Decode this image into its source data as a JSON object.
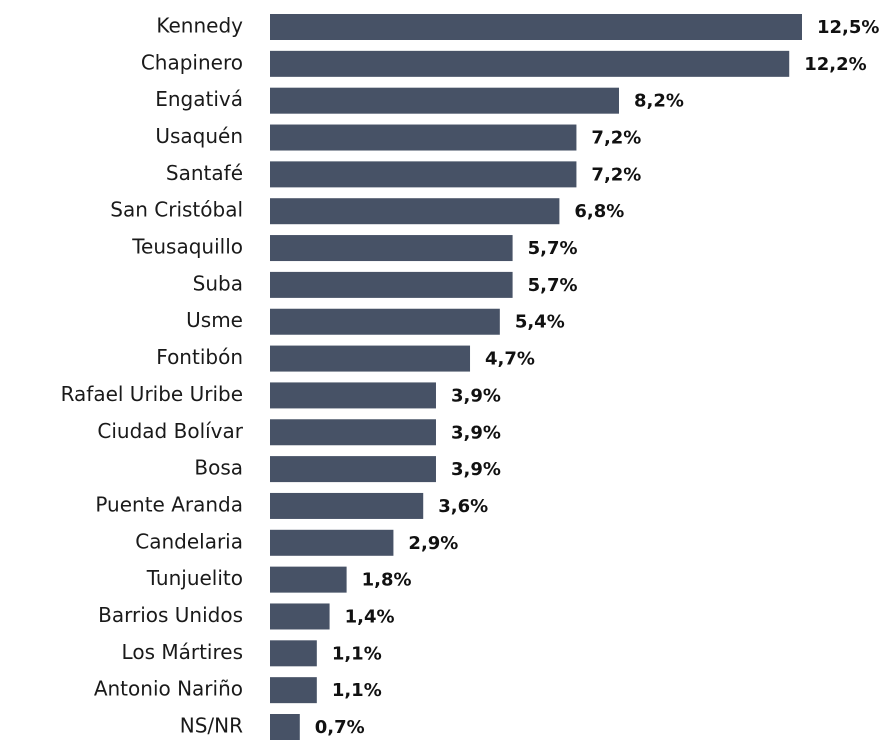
{
  "chart_data": {
    "type": "bar",
    "orientation": "horizontal",
    "color": "#475266",
    "categories": [
      "Kennedy",
      "Chapinero",
      "Engativá",
      "Usaquén",
      "Santafé",
      "San Cristóbal",
      "Teusaquillo",
      "Suba",
      "Usme",
      "Fontibón",
      "Rafael Uribe Uribe",
      "Ciudad Bolívar",
      "Bosa",
      "Puente Aranda",
      "Candelaria",
      "Tunjuelito",
      "Barrios Unidos",
      "Los Mártires",
      "Antonio Nariño",
      "NS/NR"
    ],
    "values": [
      12.5,
      12.2,
      8.2,
      7.2,
      7.2,
      6.8,
      5.7,
      5.7,
      5.4,
      4.7,
      3.9,
      3.9,
      3.9,
      3.6,
      2.9,
      1.8,
      1.4,
      1.1,
      1.1,
      0.7
    ],
    "value_labels": [
      "12,5%",
      "12,2%",
      "8,2%",
      "7,2%",
      "7,2%",
      "6,8%",
      "5,7%",
      "5,7%",
      "5,4%",
      "4,7%",
      "3,9%",
      "3,9%",
      "3,9%",
      "3,6%",
      "2,9%",
      "1,8%",
      "1,4%",
      "1,1%",
      "1,1%",
      "0,7%"
    ]
  }
}
